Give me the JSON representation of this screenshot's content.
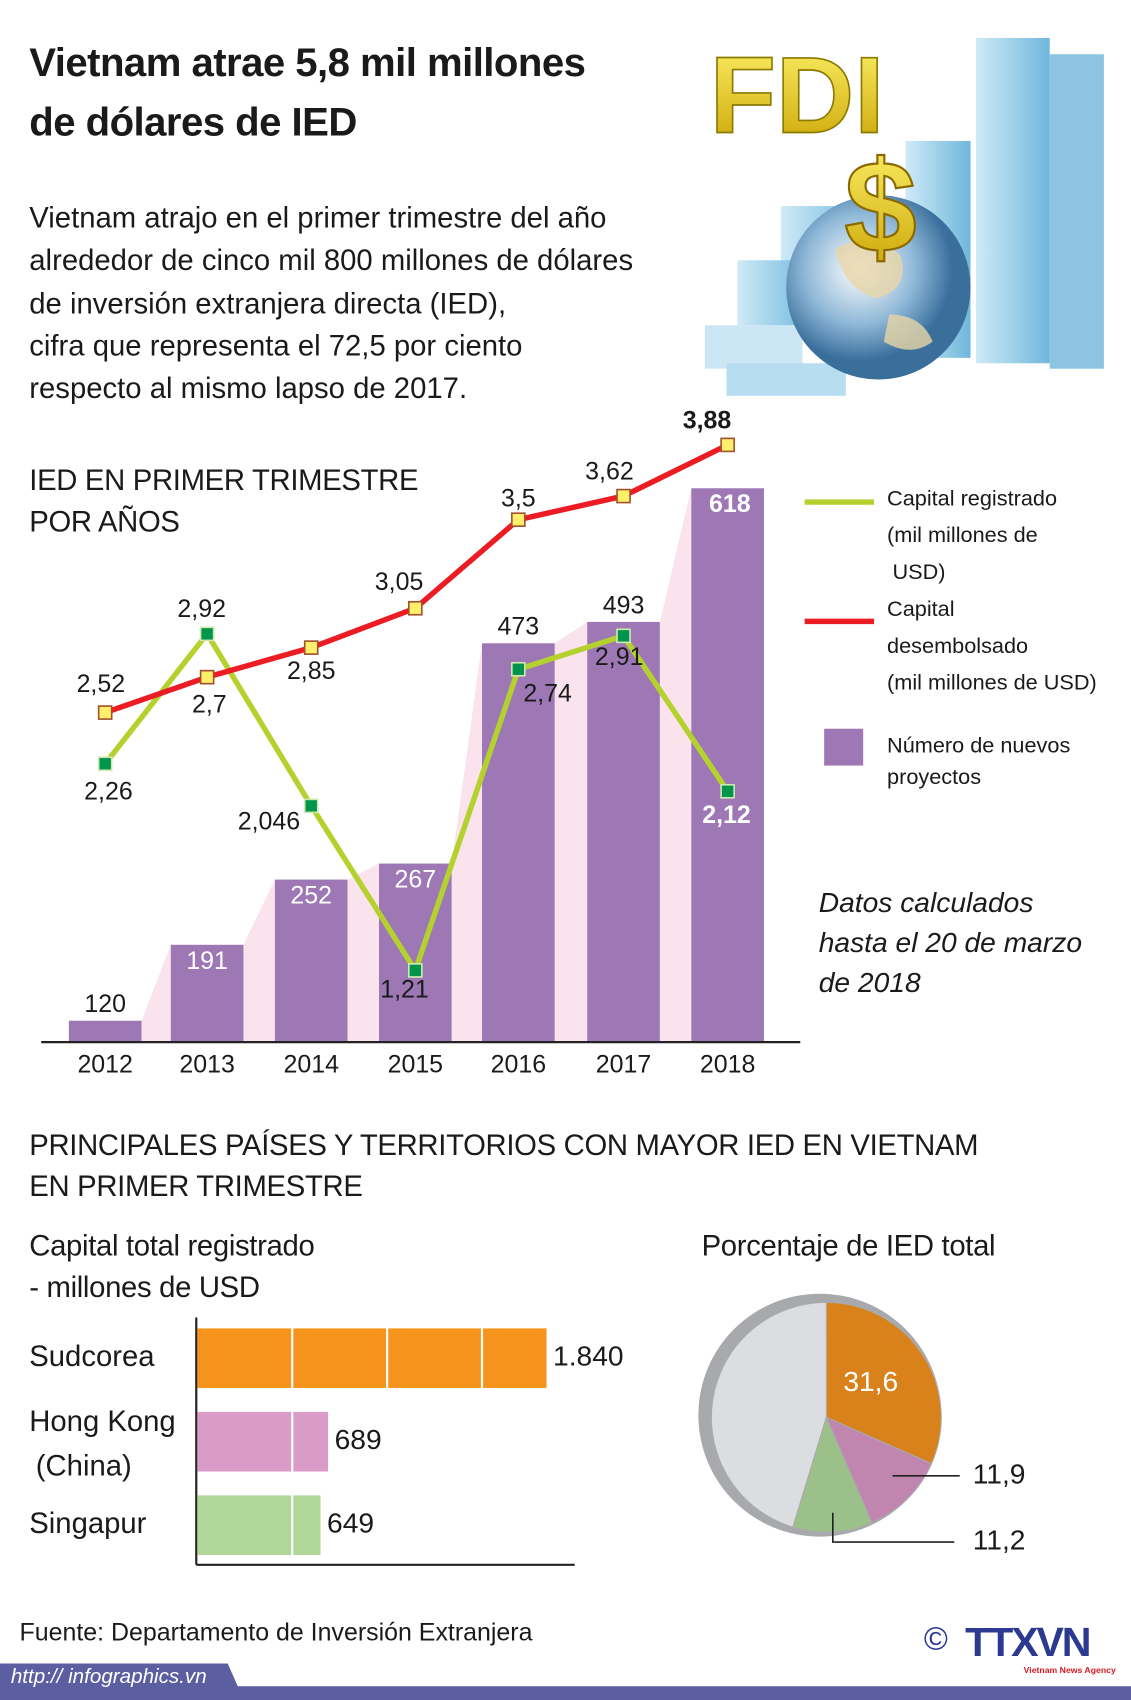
{
  "header": {
    "title_line1": "Vietnam atrae 5,8 mil millones",
    "title_line2": "de dólares de IED",
    "lead": [
      "Vietnam atrajo en el primer trimestre del año",
      "alrededor de cinco mil 800 millones de dólares",
      "de inversión extranjera directa (IED),",
      "cifra que representa el 72,5 por ciento",
      "respecto al mismo lapso de 2017."
    ],
    "illustration_text": "FDI",
    "illustration_symbol": "$"
  },
  "chart_data": [
    {
      "type": "bar+line",
      "title": [
        "IED EN PRIMER TRIMESTRE",
        "POR AÑOS"
      ],
      "categories": [
        "2012",
        "2013",
        "2014",
        "2015",
        "2016",
        "2017",
        "2018"
      ],
      "bars": {
        "name": "Número de nuevos proyectos",
        "values": [
          120,
          191,
          252,
          267,
          473,
          493,
          618
        ],
        "labels": [
          "120",
          "191",
          "252",
          "267",
          "473",
          "493",
          "618"
        ],
        "color": "#9d78b5"
      },
      "series": [
        {
          "name": "Capital registrado (mil millones de USD)",
          "values": [
            2.26,
            2.92,
            2.046,
            1.21,
            2.74,
            2.91,
            2.12
          ],
          "labels": [
            "2,26",
            "2,92",
            "2,046",
            "1,21",
            "2,74",
            "2,91",
            "2,12"
          ],
          "color": "#b5d12e"
        },
        {
          "name": "Capital desembolsado (mil millones de USD)",
          "values": [
            2.52,
            2.7,
            2.85,
            3.05,
            3.5,
            3.62,
            3.88
          ],
          "labels": [
            "2,52",
            "2,7",
            "2,85",
            "3,05",
            "3,5",
            "3,62",
            "3,88"
          ],
          "color": "#ec1c24"
        }
      ],
      "legend": {
        "placement": "right",
        "green": [
          "Capital registrado",
          "(mil millones de",
          "USD)"
        ],
        "red": [
          "Capital",
          "desembolsado",
          "(mil millones de USD)"
        ],
        "purple": [
          "Número de nuevos",
          "proyectos"
        ]
      },
      "note": [
        "Datos calculados",
        "hasta el 20 de marzo",
        "de 2018"
      ]
    },
    {
      "type": "bar",
      "orientation": "horizontal",
      "title": [
        "Capital total registrado",
        "- millones de USD"
      ],
      "categories": [
        "Sudcorea",
        "Hong Kong (China)",
        "Singapur"
      ],
      "category_lines": [
        [
          "Sudcorea"
        ],
        [
          "Hong Kong",
          "(China)"
        ],
        [
          "Singapur"
        ]
      ],
      "values": [
        1840,
        689,
        649
      ],
      "labels": [
        "1.840",
        "689",
        "649"
      ],
      "colors": [
        "#f7941d",
        "#d99bc7",
        "#b1d89a"
      ]
    },
    {
      "type": "pie",
      "title": "Porcentaje de IED total",
      "values": [
        31.6,
        11.9,
        11.2
      ],
      "labels": [
        "31,6",
        "11,9",
        "11,2"
      ],
      "colors": [
        "#d9821c",
        "#c086b0",
        "#9bc08a"
      ],
      "remainder_color": "#dcdde0"
    }
  ],
  "section2_title": [
    "PRINCIPALES PAÍSES Y TERRITORIOS CON MAYOR IED EN VIETNAM",
    "EN PRIMER TRIMESTRE"
  ],
  "footer": {
    "source": "Fuente: Departamento de Inversión Extranjera",
    "url": "http:// infographics.vn",
    "copyright": "©",
    "logo": "TTXVN",
    "logo_sub": "Vietnam News Agency",
    "bar_color": "#5b5ea0",
    "logo_color": "#2b3990"
  }
}
